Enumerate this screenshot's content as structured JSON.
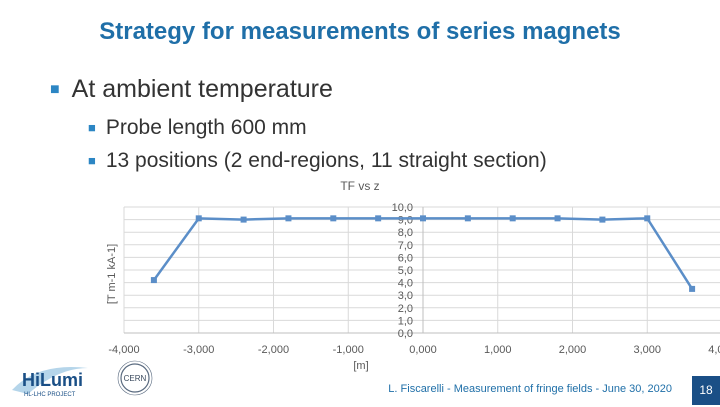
{
  "slide": {
    "title": "Strategy for measurements of series magnets",
    "bullets": [
      {
        "level": 1,
        "text": "At ambient temperature"
      },
      {
        "level": 2,
        "text": "Probe length 600 mm"
      },
      {
        "level": 2,
        "text": "13 positions (2 end-regions, 11 straight section)"
      }
    ],
    "footer": "L. Fiscarelli - Measurement of fringe fields - June 30, 2020",
    "page_number": "18",
    "logo_text": {
      "hilumi": "HiLumi",
      "hilumi_sub": "HL-LHC PROJECT",
      "cern": "CERN"
    }
  },
  "chart_data": {
    "type": "line",
    "title": "TF vs z",
    "xlabel": "[m]",
    "ylabel": "[T m-1 kA-1]",
    "xlim": [
      -4.0,
      4.0
    ],
    "ylim": [
      0,
      10
    ],
    "x_ticks": [
      "-4,000",
      "-3,000",
      "-2,000",
      "-1,000",
      "0,000",
      "1,000",
      "2,000",
      "3,000",
      "4,000"
    ],
    "y_ticks": [
      "0,0",
      "1,0",
      "2,0",
      "3,0",
      "4,0",
      "5,0",
      "6,0",
      "7,0",
      "8,0",
      "9,0",
      "10,0"
    ],
    "grid": true,
    "series": [
      {
        "color": "#5b8ec8",
        "x": [
          -3.6,
          -3.0,
          -2.4,
          -1.8,
          -1.2,
          -0.6,
          0.0,
          0.6,
          1.2,
          1.8,
          2.4,
          3.0,
          3.6
        ],
        "y": [
          4.2,
          9.1,
          9.0,
          9.1,
          9.1,
          9.1,
          9.1,
          9.1,
          9.1,
          9.1,
          9.0,
          9.1,
          3.5
        ]
      }
    ]
  }
}
